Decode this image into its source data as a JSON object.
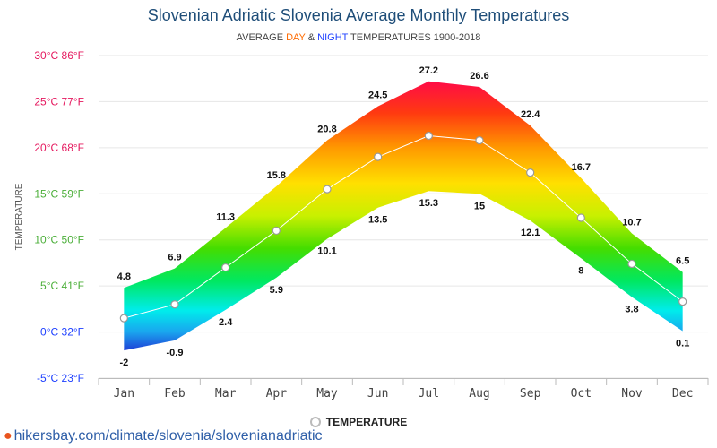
{
  "title": "Slovenian Adriatic Slovenia Average Monthly Temperatures",
  "subtitle": {
    "prefix": "AVERAGE ",
    "day": "DAY",
    "amp": " & ",
    "night": "NIGHT",
    "suffix": " TEMPERATURES 1900-2018"
  },
  "legend_label": "TEMPERATURE",
  "footer_url": "hikersbay.com/climate/slovenia/slovenianadriatic",
  "colors": {
    "title": "#1f4e79",
    "day": "#ff6a00",
    "night": "#1e40ff"
  },
  "chart_data": {
    "type": "area",
    "categories": [
      "Jan",
      "Feb",
      "Mar",
      "Apr",
      "May",
      "Jun",
      "Jul",
      "Aug",
      "Sep",
      "Oct",
      "Nov",
      "Dec"
    ],
    "series": [
      {
        "name": "DAY",
        "values": [
          4.8,
          6.9,
          11.3,
          15.8,
          20.8,
          24.5,
          27.2,
          26.6,
          22.4,
          16.7,
          10.7,
          6.5
        ]
      },
      {
        "name": "NIGHT",
        "values": [
          -2,
          -0.9,
          2.4,
          5.9,
          10.1,
          13.5,
          15.3,
          15,
          12.1,
          8,
          3.8,
          0.1
        ]
      },
      {
        "name": "TEMPERATURE",
        "values": [
          1.5,
          3,
          7,
          11,
          15.5,
          19,
          21.3,
          20.8,
          17.3,
          12.4,
          7.4,
          3.3
        ]
      }
    ],
    "ylabel": "TEMPERATURE",
    "ylim": [
      -5,
      30
    ],
    "yticks": [
      {
        "value": 30,
        "label": "30°C 86°F",
        "color": "#e5195f"
      },
      {
        "value": 25,
        "label": "25°C 77°F",
        "color": "#e5195f"
      },
      {
        "value": 20,
        "label": "20°C 68°F",
        "color": "#e5195f"
      },
      {
        "value": 15,
        "label": "15°C 59°F",
        "color": "#4caf3a"
      },
      {
        "value": 10,
        "label": "10°C 50°F",
        "color": "#4caf3a"
      },
      {
        "value": 5,
        "label": "5°C 41°F",
        "color": "#4caf3a"
      },
      {
        "value": 0,
        "label": "0°C 32°F",
        "color": "#1e40ff"
      },
      {
        "value": -5,
        "label": "-5°C 23°F",
        "color": "#1e40ff"
      }
    ],
    "high_labels": [
      "4.8",
      "6.9",
      "11.3",
      "15.8",
      "20.8",
      "24.5",
      "27.2",
      "26.6",
      "22.4",
      "16.7",
      "10.7",
      "6.5"
    ],
    "low_labels": [
      "-2",
      "-0.9",
      "2.4",
      "5.9",
      "10.1",
      "13.5",
      "15.3",
      "15",
      "12.1",
      "8",
      "3.8",
      "0.1"
    ],
    "grid": true,
    "legend": "bottom-center"
  }
}
